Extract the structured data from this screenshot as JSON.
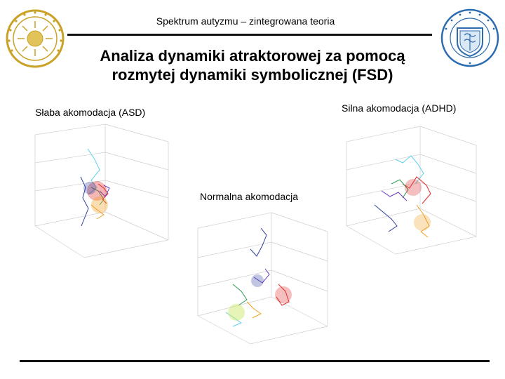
{
  "header": {
    "title": "Spektrum autyzmu – zintegrowana teoria"
  },
  "slide": {
    "title_line1": "Analiza dynamiki atraktorowej za pomocą",
    "title_line2": "rozmytej dynamiki symbolicznej (FSD)"
  },
  "panels": {
    "left_label": "Słaba akomodacja (ASD)",
    "right_label": "Silna akomodacja (ADHD)",
    "center_label": "Normalna akomodacja"
  },
  "logos": {
    "left": {
      "name": "university-seal-left",
      "color": "#c9a227"
    },
    "right": {
      "name": "umcs-logo",
      "color": "#2b6cb0"
    }
  },
  "colors": {
    "rule": "#111111",
    "grid": "#cfcfcf"
  }
}
